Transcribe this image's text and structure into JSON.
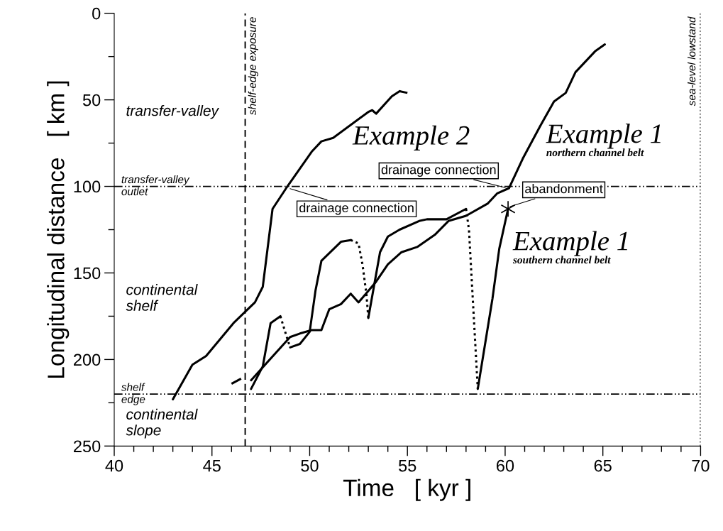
{
  "chart_data": {
    "type": "line",
    "xlabel": "Time   [ kyr ]",
    "ylabel": "Longitudinal distance   [ km ]",
    "xlim": [
      40,
      70
    ],
    "ylim": [
      250,
      0
    ],
    "xticks": [
      40,
      {
        "value": 41,
        "label": null
      },
      {
        "value": 42,
        "label": null
      },
      {
        "value": 43,
        "label": null
      },
      {
        "value": 44,
        "label": null
      },
      45,
      {
        "value": 46,
        "label": null
      },
      {
        "value": 47,
        "label": null
      },
      {
        "value": 48,
        "label": null
      },
      {
        "value": 49,
        "label": null
      },
      50,
      {
        "value": 51,
        "label": null
      },
      {
        "value": 52,
        "label": null
      },
      {
        "value": 53,
        "label": null
      },
      {
        "value": 54,
        "label": null
      },
      55,
      {
        "value": 56,
        "label": null
      },
      {
        "value": 57,
        "label": null
      },
      {
        "value": 58,
        "label": null
      },
      {
        "value": 59,
        "label": null
      },
      60,
      {
        "value": 61,
        "label": null
      },
      {
        "value": 62,
        "label": null
      },
      {
        "value": 63,
        "label": null
      },
      {
        "value": 64,
        "label": null
      },
      65,
      {
        "value": 66,
        "label": null
      },
      {
        "value": 67,
        "label": null
      },
      {
        "value": 68,
        "label": null
      },
      {
        "value": 69,
        "label": null
      },
      70
    ],
    "yticks": [
      0,
      {
        "value": 25,
        "label": null
      },
      50,
      {
        "value": 75,
        "label": null
      },
      100,
      {
        "value": 125,
        "label": null
      },
      150,
      {
        "value": 175,
        "label": null
      },
      200,
      {
        "value": 225,
        "label": null
      },
      250
    ],
    "grid": false,
    "series": [
      {
        "color": "#000000",
        "line_style": "solid",
        "x": [
          43.0,
          44.0,
          44.7,
          46.1,
          47.2,
          47.6,
          48.1,
          48.8,
          50.1,
          50.6,
          51.2,
          53.0,
          53.2,
          53.4,
          54.2,
          54.6
        ],
        "values": [
          223,
          203,
          198,
          179,
          167,
          158,
          113,
          101,
          80,
          74,
          72,
          57,
          56,
          58,
          48,
          45
        ]
      },
      {
        "color": "#000000",
        "line_style": "dashed",
        "x": [
          54.6,
          55.0
        ],
        "values": [
          45,
          46
        ]
      },
      {
        "color": "#000000",
        "line_style": "dashed",
        "x": [
          46.0,
          46.5,
          46.8
        ],
        "values": [
          214,
          211,
          212
        ]
      },
      {
        "color": "#000000",
        "line_style": "solid",
        "x": [
          47.0,
          49.0,
          49.5,
          50.1,
          50.6,
          51.0,
          51.6,
          52.1,
          52.5,
          53.4,
          54.0,
          54.7,
          55.5,
          56.4,
          57.1,
          58.0,
          59.1,
          59.6,
          60.2,
          60.9,
          61.8,
          62.5,
          63.1,
          63.6,
          64.6,
          65.1
        ],
        "values": [
          212,
          187,
          185,
          183,
          183,
          171,
          168,
          162,
          167,
          155,
          145,
          138,
          135,
          128,
          120,
          117,
          110,
          104,
          101,
          84,
          65,
          51,
          46,
          34,
          22,
          18
        ]
      },
      {
        "color": "#000000",
        "line_style": "solid",
        "x": [
          47.0,
          47.6,
          48.0,
          48.5
        ],
        "values": [
          217,
          204,
          179,
          175
        ]
      },
      {
        "color": "#000000",
        "line_style": "dotted",
        "x": [
          48.5,
          48.8,
          49.0
        ],
        "values": [
          175,
          186,
          193
        ]
      },
      {
        "color": "#000000",
        "line_style": "solid",
        "x": [
          49.0,
          49.5,
          50.0,
          50.3,
          50.6,
          51.6,
          52.1
        ],
        "values": [
          193,
          191,
          184,
          160,
          143,
          132,
          131
        ]
      },
      {
        "color": "#000000",
        "line_style": "dotted",
        "x": [
          52.1,
          52.5,
          52.7,
          52.9,
          53.0
        ],
        "values": [
          131,
          133,
          145,
          162,
          176
        ]
      },
      {
        "color": "#000000",
        "line_style": "solid",
        "x": [
          53.0,
          53.6,
          54.0,
          54.6,
          55.6,
          56.0,
          57.0,
          58.0
        ],
        "values": [
          176,
          138,
          129,
          125,
          120,
          119,
          119,
          113
        ]
      },
      {
        "color": "#000000",
        "line_style": "dotted",
        "x": [
          58.0,
          58.15,
          58.3,
          58.6
        ],
        "values": [
          113,
          125,
          156,
          217
        ]
      },
      {
        "color": "#000000",
        "line_style": "solid",
        "x": [
          58.6,
          59.35,
          59.7,
          60.15
        ],
        "values": [
          217,
          165,
          136,
          113
        ]
      },
      {
        "type": "scatter",
        "color": "#000000",
        "marker": "cross",
        "x": [
          60.15
        ],
        "values": [
          113
        ]
      }
    ],
    "ref_lines": [
      {
        "axis": "y",
        "value": 100,
        "label": "transfer-valley\noutlet",
        "line_style": "dashdot",
        "color": "#000000"
      },
      {
        "axis": "y",
        "value": 220,
        "label": "shelf\nedge",
        "line_style": "dashdot",
        "color": "#000000"
      },
      {
        "axis": "x",
        "value": 46.7,
        "label": "shelf-edge exposure",
        "line_style": "dashed",
        "color": "#000000"
      },
      {
        "axis": "x",
        "value": 70,
        "label": "sea-level lowstand",
        "line_style": "dotted",
        "color": "#000000"
      }
    ],
    "annotations": [
      "transfer-valley",
      "continental\nshelf",
      "continental\nslope",
      "Example 2",
      "Example 1",
      "northern channel belt",
      "Example 1",
      "southern channel belt",
      {
        "text": "drainage connection",
        "x": 48.9,
        "y": 101
      },
      {
        "text": "drainage connection",
        "x": 60.1,
        "y": 101
      },
      {
        "text": "abandonment",
        "x": 60.15,
        "y": 112
      }
    ]
  }
}
